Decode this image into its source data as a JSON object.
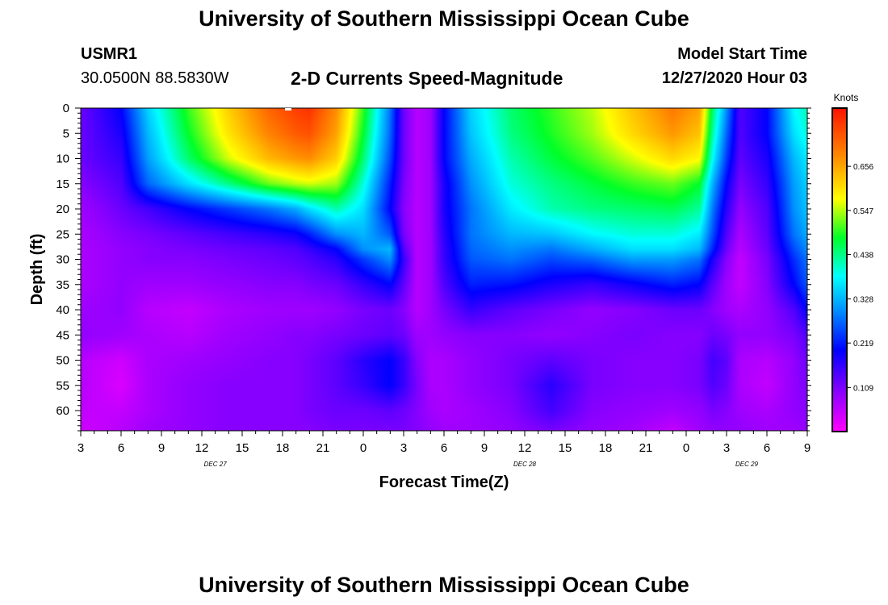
{
  "header": {
    "title": "University of Southern Mississippi Ocean Cube",
    "station_id": "USMR1",
    "station_coords": "30.0500N 88.5830W",
    "plot_title": "2-D Currents Speed-Magnitude",
    "model_start_label": "Model Start Time",
    "model_start_value": "12/27/2020 Hour 03"
  },
  "footer": {
    "title": "University of Southern Mississippi Ocean Cube"
  },
  "chart_data": {
    "type": "heatmap",
    "title": "2-D Currents Speed-Magnitude",
    "xlabel": "Forecast Time(Z)",
    "ylabel": "Depth (ft)",
    "x_ticks": [
      "3",
      "6",
      "9",
      "12",
      "15",
      "18",
      "21",
      "0",
      "3",
      "6",
      "9",
      "12",
      "15",
      "18",
      "21",
      "0",
      "3",
      "6",
      "9"
    ],
    "x_range_hours": [
      0,
      54
    ],
    "date_labels": [
      {
        "text": "DEC 27",
        "hour": 10
      },
      {
        "text": "DEC 28",
        "hour": 33
      },
      {
        "text": "DEC 29",
        "hour": 49.5
      }
    ],
    "y_ticks": [
      0,
      5,
      10,
      15,
      20,
      25,
      30,
      35,
      40,
      45,
      50,
      55,
      60
    ],
    "ylim": [
      0,
      64
    ],
    "y_inverted": true,
    "colorbar": {
      "unit": "Knots",
      "ticks": [
        0.109,
        0.219,
        0.328,
        0.438,
        0.547,
        0.656
      ],
      "range": [
        0,
        0.8
      ]
    },
    "x_hours": [
      0,
      3,
      5,
      8,
      11,
      14,
      16,
      17,
      19,
      21,
      23,
      24,
      25,
      26,
      27,
      29,
      32,
      35,
      38,
      41,
      44,
      46,
      47,
      48,
      49,
      51,
      53,
      54
    ],
    "depths": [
      0,
      5,
      10,
      15,
      20,
      25,
      28,
      30,
      35,
      40,
      45,
      50,
      55,
      60,
      64
    ],
    "values": [
      [
        0.12,
        0.2,
        0.35,
        0.5,
        0.62,
        0.72,
        0.76,
        0.77,
        0.68,
        0.5,
        0.28,
        0.12,
        0.06,
        0.08,
        0.2,
        0.35,
        0.45,
        0.5,
        0.55,
        0.63,
        0.7,
        0.66,
        0.45,
        0.3,
        0.14,
        0.2,
        0.38,
        0.42
      ],
      [
        0.12,
        0.18,
        0.33,
        0.48,
        0.6,
        0.69,
        0.73,
        0.74,
        0.66,
        0.48,
        0.27,
        0.12,
        0.06,
        0.08,
        0.2,
        0.34,
        0.44,
        0.49,
        0.54,
        0.61,
        0.67,
        0.63,
        0.42,
        0.27,
        0.14,
        0.2,
        0.36,
        0.4
      ],
      [
        0.12,
        0.16,
        0.31,
        0.45,
        0.56,
        0.64,
        0.67,
        0.68,
        0.62,
        0.45,
        0.25,
        0.12,
        0.06,
        0.08,
        0.2,
        0.32,
        0.42,
        0.47,
        0.51,
        0.56,
        0.61,
        0.58,
        0.38,
        0.24,
        0.13,
        0.18,
        0.33,
        0.37
      ],
      [
        0.1,
        0.14,
        0.27,
        0.36,
        0.44,
        0.52,
        0.55,
        0.56,
        0.54,
        0.4,
        0.22,
        0.11,
        0.06,
        0.08,
        0.18,
        0.3,
        0.4,
        0.44,
        0.47,
        0.5,
        0.52,
        0.48,
        0.32,
        0.2,
        0.11,
        0.16,
        0.31,
        0.35
      ],
      [
        0.08,
        0.12,
        0.15,
        0.2,
        0.24,
        0.28,
        0.32,
        0.36,
        0.42,
        0.36,
        0.2,
        0.1,
        0.06,
        0.08,
        0.18,
        0.28,
        0.37,
        0.42,
        0.44,
        0.45,
        0.46,
        0.43,
        0.28,
        0.17,
        0.09,
        0.14,
        0.3,
        0.34
      ],
      [
        0.07,
        0.1,
        0.11,
        0.13,
        0.15,
        0.17,
        0.19,
        0.22,
        0.3,
        0.33,
        0.26,
        0.11,
        0.06,
        0.08,
        0.17,
        0.28,
        0.33,
        0.34,
        0.38,
        0.4,
        0.4,
        0.37,
        0.25,
        0.14,
        0.07,
        0.13,
        0.28,
        0.32
      ],
      [
        0.07,
        0.09,
        0.1,
        0.11,
        0.12,
        0.13,
        0.14,
        0.16,
        0.2,
        0.3,
        0.33,
        0.14,
        0.06,
        0.08,
        0.16,
        0.27,
        0.3,
        0.28,
        0.32,
        0.36,
        0.36,
        0.33,
        0.22,
        0.12,
        0.06,
        0.12,
        0.25,
        0.3
      ],
      [
        0.07,
        0.09,
        0.1,
        0.1,
        0.11,
        0.12,
        0.13,
        0.14,
        0.17,
        0.24,
        0.3,
        0.16,
        0.06,
        0.08,
        0.16,
        0.26,
        0.28,
        0.25,
        0.27,
        0.31,
        0.31,
        0.28,
        0.18,
        0.1,
        0.05,
        0.11,
        0.23,
        0.28
      ],
      [
        0.07,
        0.09,
        0.08,
        0.08,
        0.09,
        0.1,
        0.1,
        0.11,
        0.12,
        0.16,
        0.2,
        0.13,
        0.06,
        0.08,
        0.14,
        0.22,
        0.21,
        0.18,
        0.16,
        0.19,
        0.22,
        0.2,
        0.13,
        0.08,
        0.05,
        0.1,
        0.2,
        0.26
      ],
      [
        0.08,
        0.09,
        0.06,
        0.05,
        0.07,
        0.08,
        0.08,
        0.08,
        0.09,
        0.11,
        0.12,
        0.1,
        0.06,
        0.08,
        0.11,
        0.16,
        0.13,
        0.11,
        0.09,
        0.1,
        0.12,
        0.12,
        0.1,
        0.08,
        0.07,
        0.09,
        0.14,
        0.2
      ],
      [
        0.09,
        0.08,
        0.07,
        0.06,
        0.08,
        0.09,
        0.1,
        0.1,
        0.11,
        0.12,
        0.13,
        0.12,
        0.08,
        0.08,
        0.09,
        0.1,
        0.1,
        0.09,
        0.1,
        0.11,
        0.1,
        0.1,
        0.12,
        0.11,
        0.09,
        0.09,
        0.11,
        0.14
      ],
      [
        0.06,
        0.04,
        0.07,
        0.08,
        0.09,
        0.1,
        0.1,
        0.11,
        0.13,
        0.17,
        0.2,
        0.16,
        0.1,
        0.07,
        0.07,
        0.09,
        0.11,
        0.13,
        0.11,
        0.1,
        0.1,
        0.11,
        0.15,
        0.13,
        0.07,
        0.06,
        0.09,
        0.12
      ],
      [
        0.06,
        0.03,
        0.07,
        0.09,
        0.1,
        0.1,
        0.1,
        0.11,
        0.13,
        0.16,
        0.2,
        0.16,
        0.11,
        0.07,
        0.07,
        0.09,
        0.11,
        0.17,
        0.11,
        0.1,
        0.1,
        0.11,
        0.14,
        0.12,
        0.07,
        0.05,
        0.09,
        0.11
      ],
      [
        0.05,
        0.05,
        0.07,
        0.09,
        0.1,
        0.1,
        0.1,
        0.11,
        0.12,
        0.12,
        0.13,
        0.12,
        0.1,
        0.08,
        0.07,
        0.08,
        0.1,
        0.15,
        0.1,
        0.09,
        0.08,
        0.09,
        0.11,
        0.1,
        0.08,
        0.07,
        0.09,
        0.1
      ],
      [
        0.04,
        0.06,
        0.08,
        0.09,
        0.1,
        0.1,
        0.1,
        0.1,
        0.11,
        0.11,
        0.11,
        0.11,
        0.1,
        0.09,
        0.08,
        0.08,
        0.09,
        0.11,
        0.09,
        0.08,
        0.05,
        0.08,
        0.09,
        0.09,
        0.09,
        0.08,
        0.08,
        0.09
      ]
    ]
  }
}
